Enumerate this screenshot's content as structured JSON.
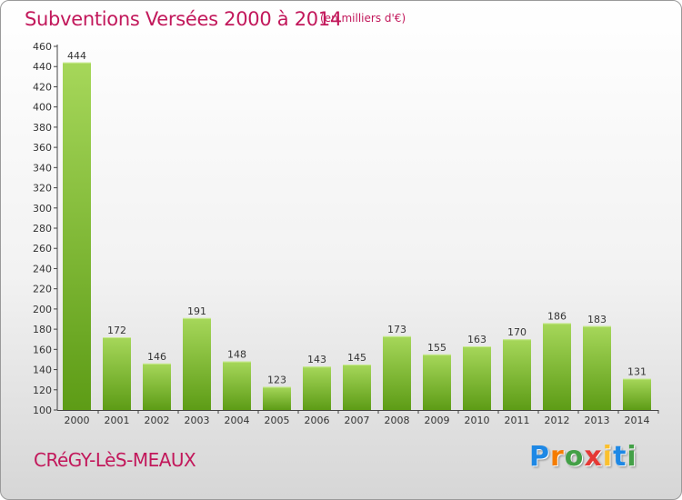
{
  "title": "Subventions Versées 2000 à 2014",
  "unit_note": "(en milliers d'€)",
  "commune": "CRéGY-LèS-MEAUX",
  "logo": {
    "letters": [
      "P",
      "r",
      "o",
      "x",
      "i",
      "t",
      "i"
    ],
    "colors": [
      "#1e88e5",
      "#f57c00",
      "#43a047",
      "#e53935",
      "#fbc02d",
      "#1e88e5",
      "#43a047"
    ]
  },
  "colors": {
    "title": "#c2185b",
    "bar_top": "#a6d75a",
    "bar_bottom": "#5d9c16",
    "axis": "#444444",
    "tick_label": "#333333"
  },
  "chart_data": {
    "type": "bar",
    "categories": [
      "2000",
      "2001",
      "2002",
      "2003",
      "2004",
      "2005",
      "2006",
      "2007",
      "2008",
      "2009",
      "2010",
      "2011",
      "2012",
      "2013",
      "2014"
    ],
    "values": [
      444,
      172,
      146,
      191,
      148,
      123,
      143,
      145,
      173,
      155,
      163,
      170,
      186,
      183,
      131
    ],
    "data_labels": [
      "444",
      "172",
      "146",
      "191",
      "148",
      "123",
      "143",
      "145",
      "173",
      "155",
      "163",
      "170",
      "186",
      "183",
      "131"
    ],
    "y_ticks": [
      "100",
      "120",
      "140",
      "160",
      "180",
      "200",
      "220",
      "240",
      "260",
      "280",
      "300",
      "320",
      "340",
      "360",
      "380",
      "400",
      "420",
      "440",
      "460"
    ],
    "ylim": [
      100,
      460
    ],
    "xlabel": "",
    "ylabel": "",
    "grid": false
  }
}
